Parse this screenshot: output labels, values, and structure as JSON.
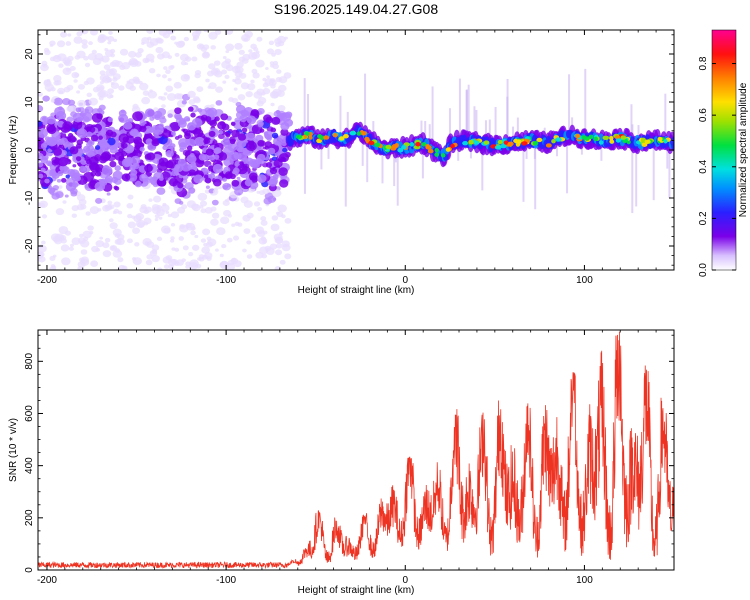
{
  "figure_title": "S196.2025.149.04.27.G08",
  "chart_data": [
    {
      "type": "heatmap",
      "title": "S196.2025.149.04.27.G08",
      "xlabel": "Height of straight line (km)",
      "ylabel": "Frequency (Hz)",
      "xlim": [
        -205,
        150
      ],
      "ylim": [
        -25,
        25
      ],
      "xticks": [
        -200,
        -100,
        0,
        100
      ],
      "yticks": [
        -20,
        -10,
        0,
        10,
        20
      ],
      "colorbar": {
        "label": "Normalized spectral amplitude",
        "range": [
          0,
          0.93
        ],
        "ticks": [
          0.0,
          0.2,
          0.4,
          0.6,
          0.8
        ],
        "colormap": "rainbow (white at 0, violet, blue, cyan, green, yellow, orange, red, magenta at max)"
      },
      "noise_region_x": [
        -205,
        -65
      ],
      "signal_ridge": {
        "x": [
          -65,
          -55,
          -45,
          -40,
          -35,
          -30,
          -25,
          -20,
          -15,
          -10,
          -5,
          0,
          5,
          10,
          15,
          20,
          22,
          25,
          30,
          40,
          50,
          60,
          70,
          80,
          90,
          100,
          110,
          120,
          130,
          140,
          150
        ],
        "frequency_hz": [
          2,
          3,
          2,
          3,
          2,
          3,
          4,
          2,
          1,
          0,
          0.5,
          0.5,
          1,
          1.5,
          0,
          -1,
          -1.5,
          1,
          2,
          1.5,
          1,
          1.5,
          2,
          1.5,
          3,
          2.5,
          2,
          2.5,
          1.5,
          2,
          1.5
        ]
      }
    },
    {
      "type": "line",
      "xlabel": "Height of straight line (km)",
      "ylabel": "SNR (10 * v/v)",
      "xlim": [
        -205,
        150
      ],
      "ylim": [
        0,
        920
      ],
      "xticks": [
        -200,
        -100,
        0,
        100
      ],
      "yticks": [
        0,
        200,
        400,
        600,
        800
      ],
      "color": "#ee3322",
      "envelope": {
        "x": [
          -205,
          -150,
          -100,
          -65,
          -60,
          -55,
          -50,
          -45,
          -40,
          -35,
          -30,
          -20,
          -10,
          0,
          10,
          20,
          30,
          40,
          50,
          60,
          70,
          80,
          90,
          100,
          110,
          120,
          130,
          140,
          150
        ],
        "peak": [
          30,
          30,
          30,
          30,
          60,
          150,
          240,
          200,
          210,
          190,
          160,
          240,
          330,
          450,
          400,
          420,
          650,
          570,
          670,
          650,
          640,
          700,
          800,
          700,
          860,
          920,
          830,
          720,
          520
        ],
        "trough": [
          5,
          5,
          5,
          5,
          10,
          20,
          25,
          20,
          25,
          20,
          20,
          40,
          60,
          80,
          60,
          70,
          60,
          60,
          50,
          40,
          40,
          50,
          50,
          40,
          30,
          30,
          30,
          30,
          30
        ]
      }
    }
  ]
}
